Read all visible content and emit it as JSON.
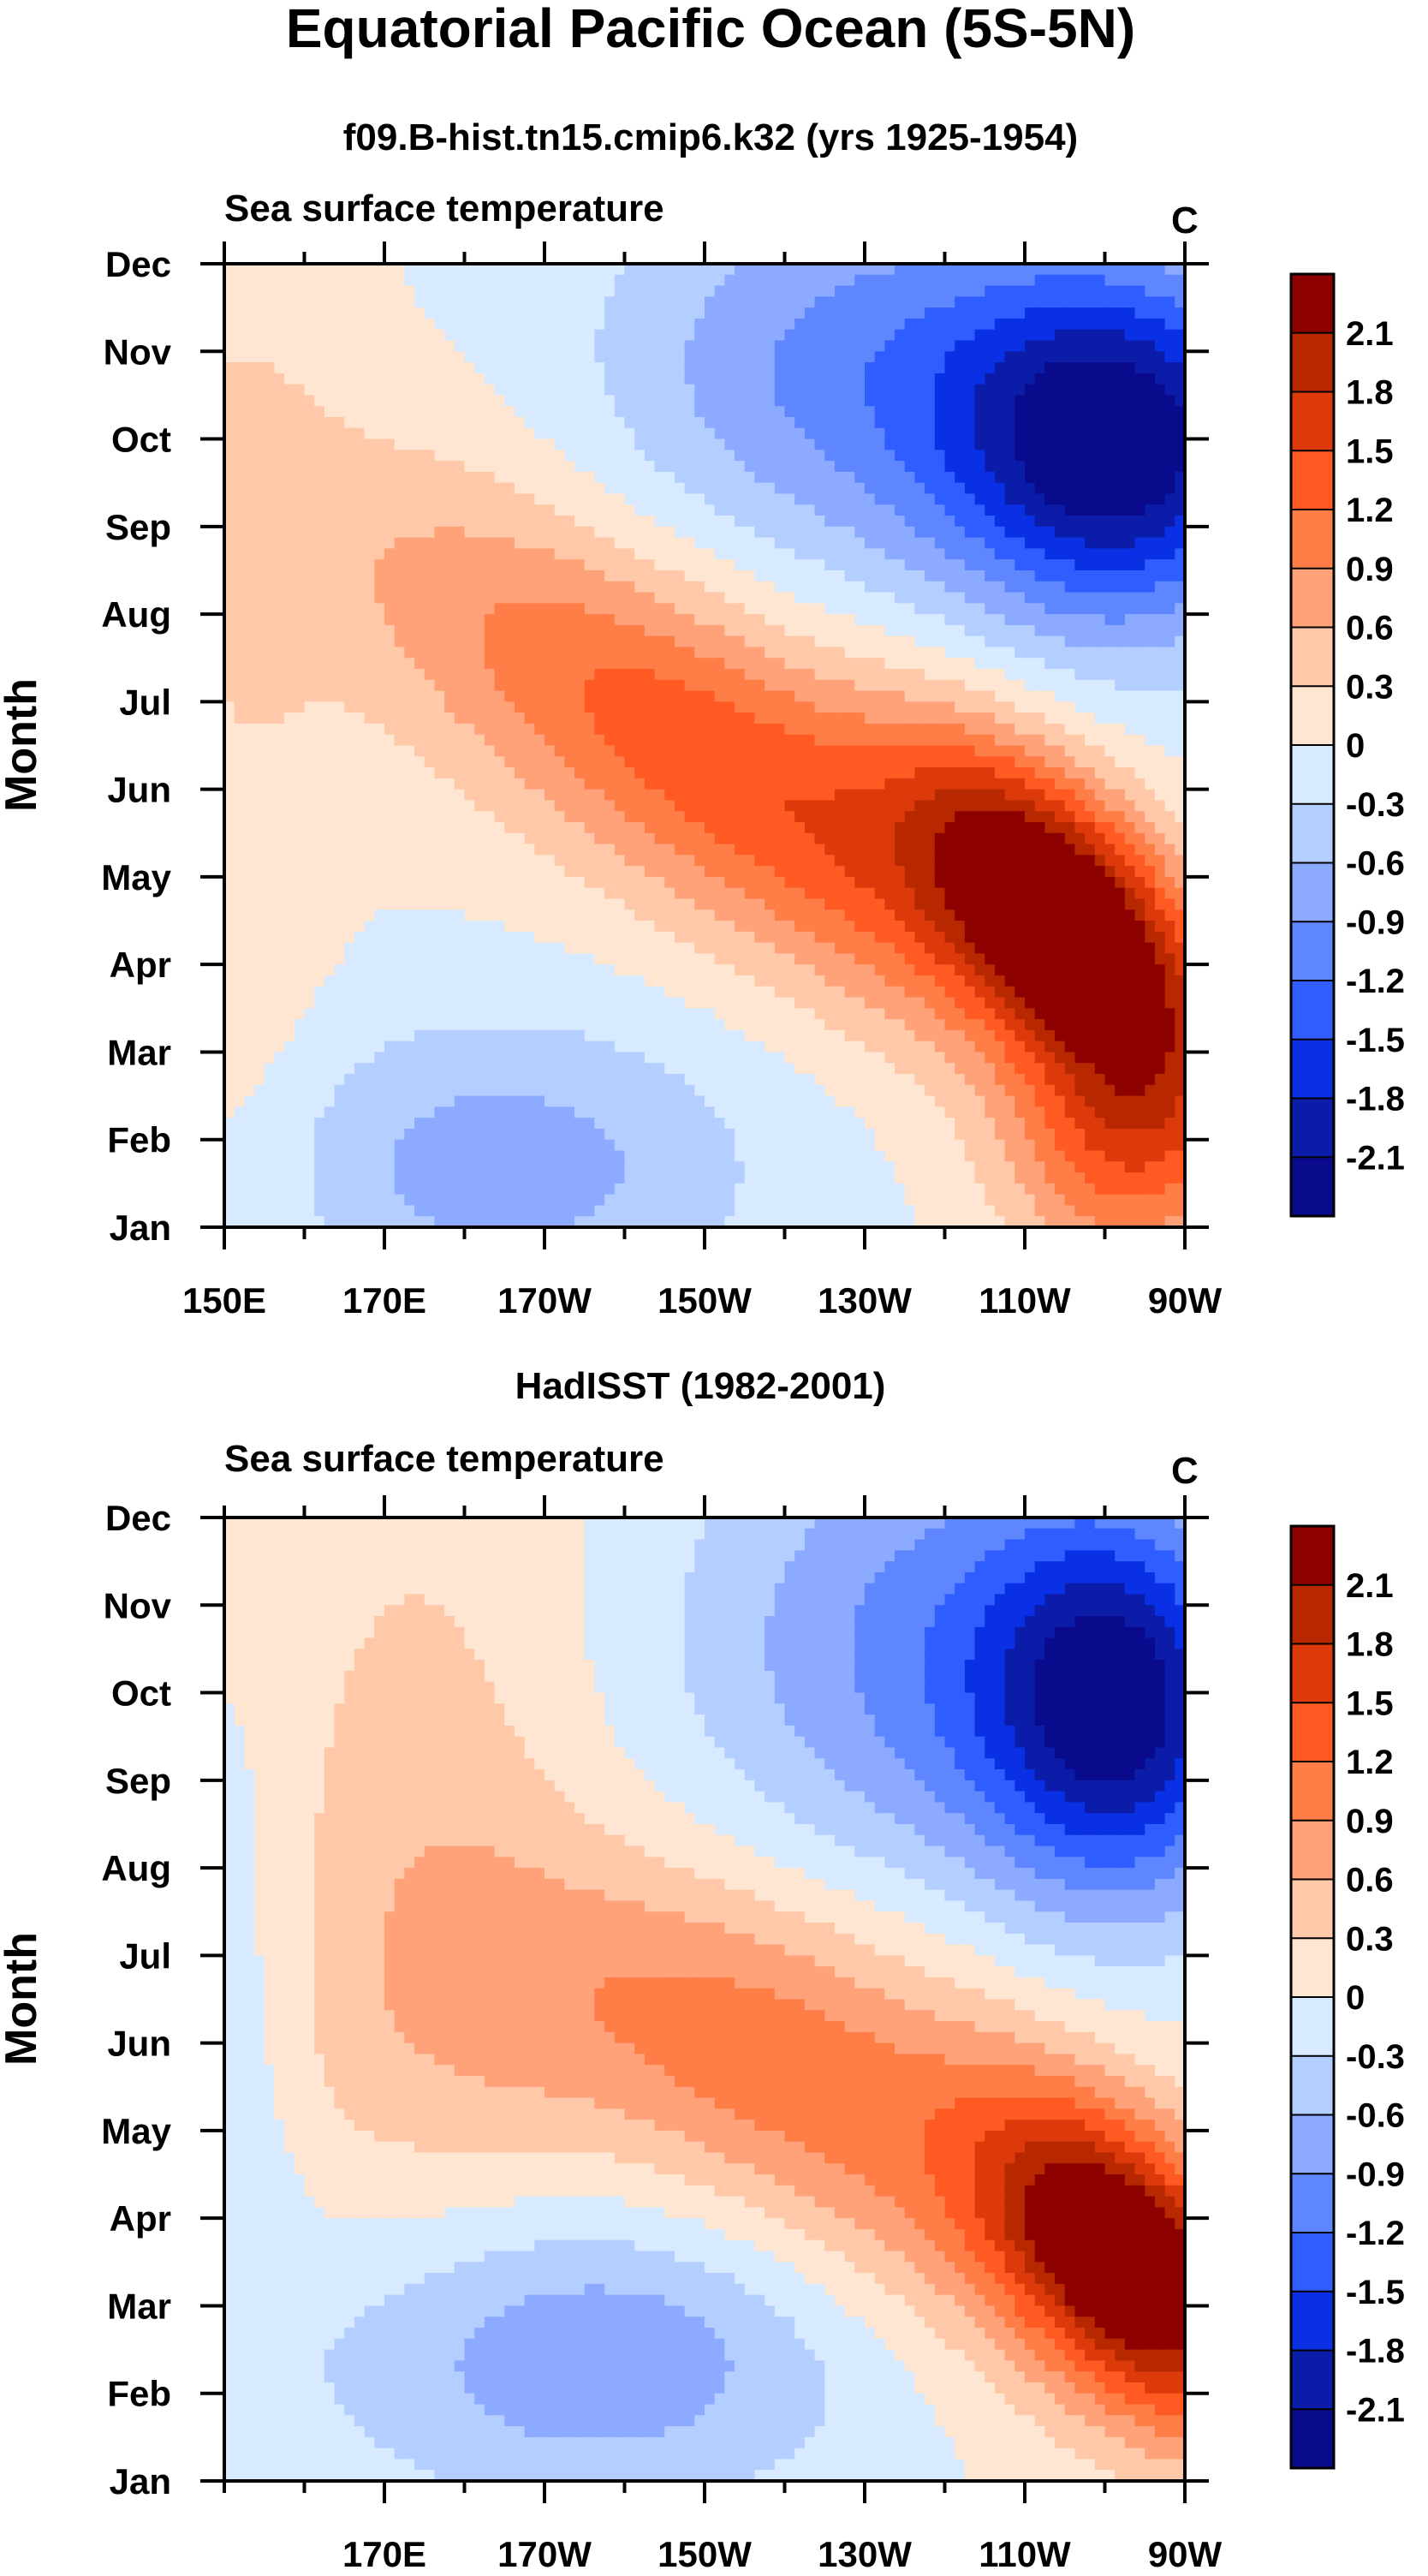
{
  "figure": {
    "title": "Equatorial Pacific Ocean (5S-5N)"
  },
  "colorbar": {
    "levels": [
      "2.1",
      "1.8",
      "1.5",
      "1.2",
      "0.9",
      "0.6",
      "0.3",
      "0",
      "-0.3",
      "-0.6",
      "-0.9",
      "-1.2",
      "-1.5",
      "-1.8",
      "-2.1"
    ],
    "colors": [
      "#8c0000",
      "#b82800",
      "#dc3a0a",
      "#ff5a23",
      "#ff7d46",
      "#ffa27a",
      "#ffc8a8",
      "#ffe6d2",
      "#d8eaff",
      "#b4ceff",
      "#8caaff",
      "#5e86ff",
      "#2f5dff",
      "#0a30e6",
      "#0a1ca8",
      "#0a0a8c"
    ]
  },
  "chart_data": [
    {
      "type": "contour",
      "id": "model",
      "subtitle": "f09.B-hist.tn15.cmip6.k32 (yrs 1925-1954)",
      "left_label": "Sea surface temperature",
      "right_label": "C",
      "ylabel": "Month",
      "xlabel": "",
      "y_ticks": [
        "Dec",
        "Nov",
        "Oct",
        "Sep",
        "Aug",
        "Jul",
        "Jun",
        "May",
        "Apr",
        "Mar",
        "Feb",
        "Jan"
      ],
      "x_ticks": [
        "150E",
        "170E",
        "170W",
        "150W",
        "130W",
        "110W",
        "90W"
      ],
      "x_tick_lon": [
        150,
        170,
        190,
        210,
        230,
        250,
        270
      ],
      "x_range_lon": [
        150,
        270
      ],
      "y_range_month": [
        1,
        12
      ],
      "centers": [
        {
          "lon": 255,
          "month": 4.6,
          "amp": 2.35,
          "sx": 13,
          "sy": 1.1,
          "tilt": -0.06
        },
        {
          "lon": 225,
          "month": 5.6,
          "amp": 1.1,
          "sx": 32,
          "sy": 1.3,
          "tilt": -0.06
        },
        {
          "lon": 195,
          "month": 6.8,
          "amp": 0.55,
          "sx": 30,
          "sy": 1.3,
          "tilt": -0.05
        },
        {
          "lon": 262,
          "month": 9.9,
          "amp": -2.25,
          "sx": 15,
          "sy": 1.4,
          "tilt": 0
        },
        {
          "lon": 230,
          "month": 10.8,
          "amp": -1.0,
          "sx": 22,
          "sy": 1.6,
          "tilt": 0
        },
        {
          "lon": 185,
          "month": 1.7,
          "amp": -0.75,
          "sx": 22,
          "sy": 1.2,
          "tilt": 0
        },
        {
          "lon": 262,
          "month": 1.9,
          "amp": 1.1,
          "sx": 10,
          "sy": 1.1,
          "tilt": 0
        },
        {
          "lon": 152,
          "month": 6.0,
          "amp": 0.25,
          "sx": 8,
          "sy": 6,
          "tilt": 0
        }
      ],
      "value_range": [
        -2.3,
        2.3
      ]
    },
    {
      "type": "contour",
      "id": "obs",
      "subtitle": "HadISST (1982-2001)",
      "left_label": "Sea surface temperature",
      "right_label": "C",
      "ylabel": "Month",
      "xlabel": "",
      "y_ticks": [
        "Dec",
        "Nov",
        "Oct",
        "Sep",
        "Aug",
        "Jul",
        "Jun",
        "May",
        "Apr",
        "Mar",
        "Feb",
        "Jan"
      ],
      "x_ticks": [
        "170E",
        "170W",
        "150W",
        "130W",
        "110W",
        "90W"
      ],
      "x_tick_lon": [
        170,
        190,
        210,
        230,
        250,
        270
      ],
      "x_range_lon": [
        150,
        270
      ],
      "y_range_month": [
        1,
        12
      ],
      "centers": [
        {
          "lon": 263,
          "month": 3.5,
          "amp": 2.35,
          "sx": 12,
          "sy": 1.1,
          "tilt": -0.05
        },
        {
          "lon": 235,
          "month": 4.7,
          "amp": 0.9,
          "sx": 30,
          "sy": 1.4,
          "tilt": -0.05
        },
        {
          "lon": 205,
          "month": 6.3,
          "amp": 0.45,
          "sx": 30,
          "sy": 1.3,
          "tilt": 0
        },
        {
          "lon": 175,
          "month": 8.5,
          "amp": 0.4,
          "sx": 14,
          "sy": 3.5,
          "tilt": 0
        },
        {
          "lon": 262,
          "month": 9.8,
          "amp": -1.9,
          "sx": 12,
          "sy": 1.5,
          "tilt": 0
        },
        {
          "lon": 240,
          "month": 10.5,
          "amp": -1.0,
          "sx": 22,
          "sy": 2.0,
          "tilt": 0
        },
        {
          "lon": 195,
          "month": 2.4,
          "amp": -0.85,
          "sx": 24,
          "sy": 1.2,
          "tilt": 0
        },
        {
          "lon": 153,
          "month": 6.0,
          "amp": -0.25,
          "sx": 5,
          "sy": 3,
          "tilt": 0
        }
      ],
      "value_range": [
        -2.3,
        2.3
      ]
    }
  ]
}
